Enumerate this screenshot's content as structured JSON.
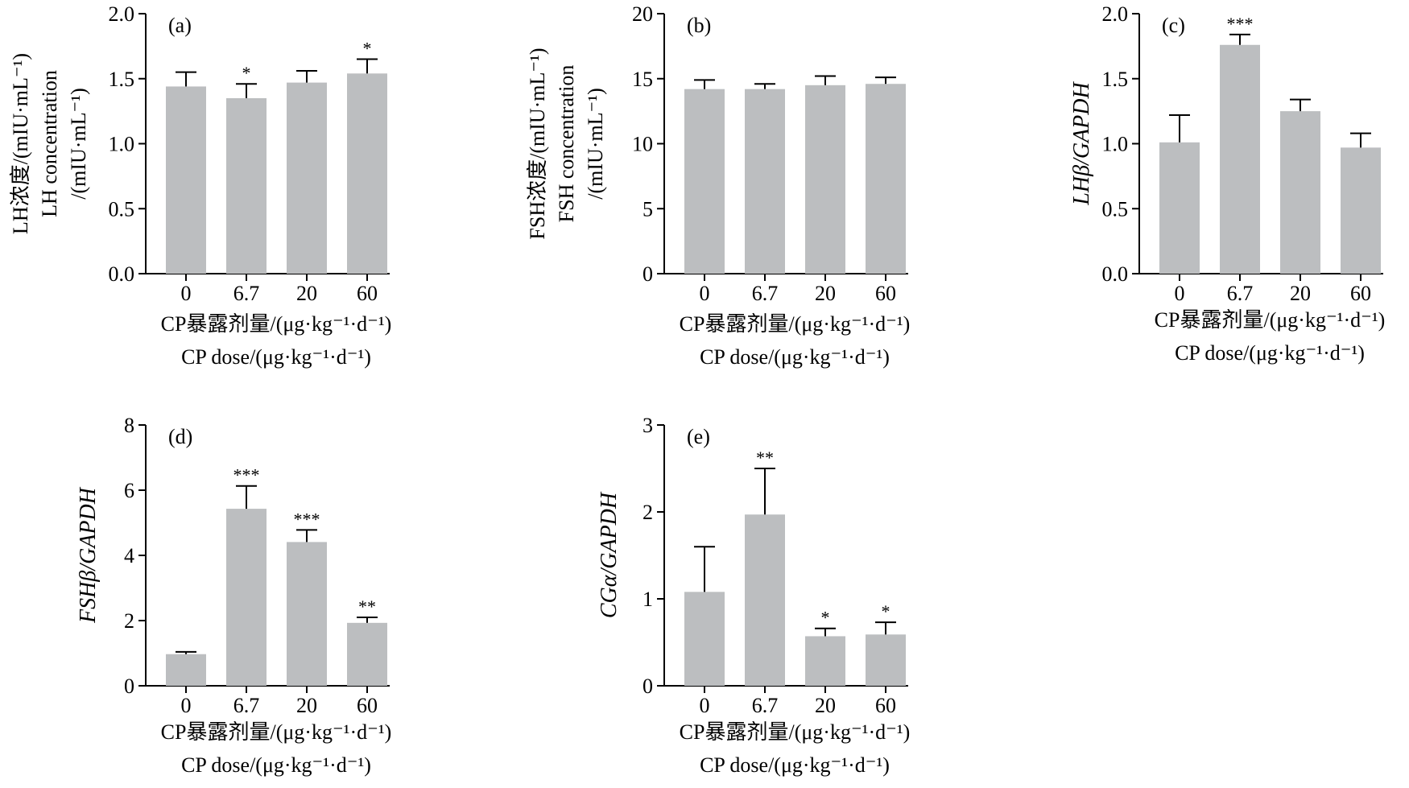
{
  "figure": {
    "x_label_cn": "CP暴露剂量/(μg·kg⁻¹·d⁻¹)",
    "x_label_en": "CP dose/(μg·kg⁻¹·d⁻¹)"
  },
  "colors": {
    "bar": "#bcbec0",
    "axis": "#000000"
  },
  "chart_data": [
    {
      "type": "bar",
      "panel": "(a)",
      "categories": [
        "0",
        "6.7",
        "20",
        "60"
      ],
      "values": [
        1.44,
        1.35,
        1.47,
        1.54
      ],
      "errors": [
        0.11,
        0.11,
        0.09,
        0.11
      ],
      "significance": [
        "",
        "*",
        "",
        "*"
      ],
      "ylim": [
        0,
        2.0
      ],
      "yticks": [
        "0.0",
        "0.5",
        "1.0",
        "1.5",
        "2.0"
      ],
      "ylabel_lines": [
        "LH浓度/(mIU·mL⁻¹)",
        "LH concentration",
        "/(mIU·mL⁻¹)"
      ],
      "ylabel_italic": false
    },
    {
      "type": "bar",
      "panel": "(b)",
      "categories": [
        "0",
        "6.7",
        "20",
        "60"
      ],
      "values": [
        14.2,
        14.2,
        14.5,
        14.6
      ],
      "errors": [
        0.7,
        0.4,
        0.7,
        0.5
      ],
      "significance": [
        "",
        "",
        "",
        ""
      ],
      "ylim": [
        0,
        20
      ],
      "yticks": [
        "0",
        "5",
        "10",
        "15",
        "20"
      ],
      "ylabel_lines": [
        "FSH浓度/(mIU·mL⁻¹)",
        "FSH concentration",
        "/(mIU·mL⁻¹)"
      ],
      "ylabel_italic": false
    },
    {
      "type": "bar",
      "panel": "(c)",
      "categories": [
        "0",
        "6.7",
        "20",
        "60"
      ],
      "values": [
        1.01,
        1.76,
        1.25,
        0.97
      ],
      "errors": [
        0.21,
        0.08,
        0.09,
        0.11
      ],
      "significance": [
        "",
        "***",
        "",
        ""
      ],
      "ylim": [
        0,
        2.0
      ],
      "yticks": [
        "0.0",
        "0.5",
        "1.0",
        "1.5",
        "2.0"
      ],
      "ylabel_lines": [
        "LHβ/GAPDH"
      ],
      "ylabel_italic": true
    },
    {
      "type": "bar",
      "panel": "(d)",
      "categories": [
        "0",
        "6.7",
        "20",
        "60"
      ],
      "values": [
        0.97,
        5.43,
        4.41,
        1.93
      ],
      "errors": [
        0.07,
        0.7,
        0.37,
        0.17
      ],
      "significance": [
        "",
        "***",
        "***",
        "**"
      ],
      "ylim": [
        0,
        8
      ],
      "yticks": [
        "0",
        "2",
        "4",
        "6",
        "8"
      ],
      "ylabel_lines": [
        "FSHβ/GAPDH"
      ],
      "ylabel_italic": true
    },
    {
      "type": "bar",
      "panel": "(e)",
      "categories": [
        "0",
        "6.7",
        "20",
        "60"
      ],
      "values": [
        1.08,
        1.97,
        0.57,
        0.59
      ],
      "errors": [
        0.52,
        0.53,
        0.09,
        0.14
      ],
      "significance": [
        "",
        "**",
        "*",
        "*"
      ],
      "ylim": [
        0,
        3
      ],
      "yticks": [
        "0",
        "1",
        "2",
        "3"
      ],
      "ylabel_lines": [
        "CGα/GAPDH"
      ],
      "ylabel_italic": true
    }
  ]
}
